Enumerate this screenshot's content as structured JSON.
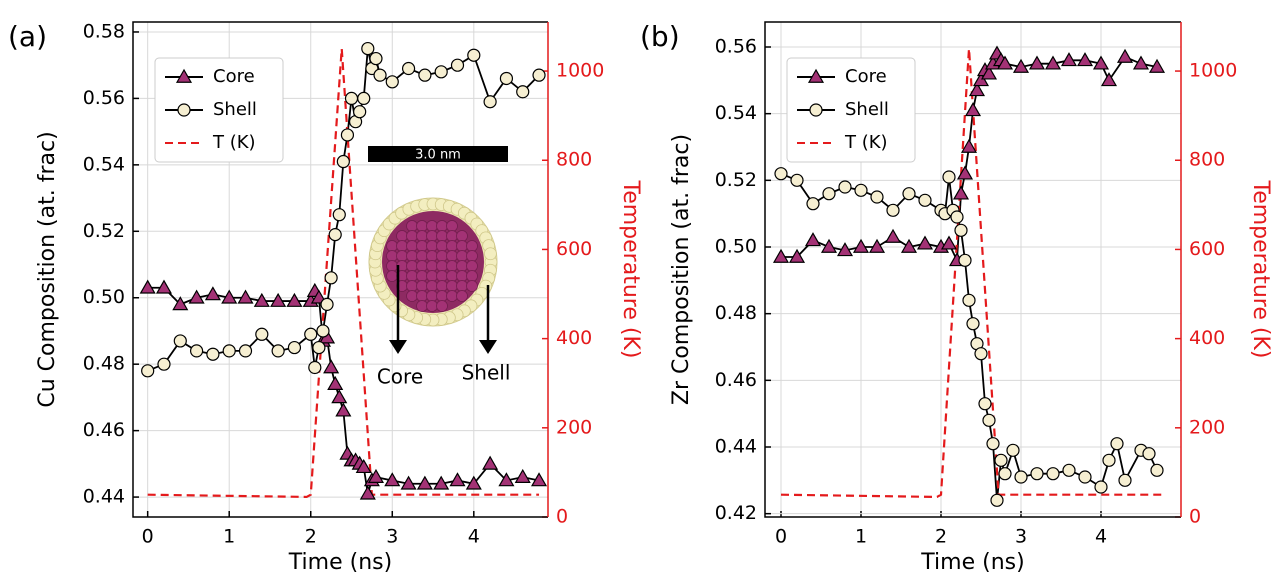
{
  "chart_data": [
    {
      "type": "line",
      "panel_label": "(a)",
      "x_label": "Time (ns)",
      "y_label": "Cu Composition (at. frac)",
      "y2_label": "Temperature (K)",
      "xlim": [
        -0.18,
        4.91
      ],
      "xticks": [
        0,
        1,
        2,
        3,
        4
      ],
      "ylim": [
        0.434,
        0.583
      ],
      "yticks": [
        0.44,
        0.46,
        0.48,
        {
          "value": 0.5,
          "label": "0.50"
        },
        0.52,
        0.54,
        0.56,
        0.58
      ],
      "y2lim": [
        0,
        1110
      ],
      "y2ticks": [
        0,
        200,
        400,
        600,
        800,
        1000
      ],
      "grid": true,
      "legend": "upper left",
      "series": [
        {
          "name": "Core",
          "color": "#000000",
          "marker": "triangle",
          "marker_color": "#a33275",
          "x": [
            0,
            0.2,
            0.4,
            0.6,
            0.8,
            1.0,
            1.2,
            1.4,
            1.6,
            1.8,
            2.0,
            2.05,
            2.1,
            2.15,
            2.2,
            2.25,
            2.3,
            2.35,
            2.4,
            2.45,
            2.5,
            2.55,
            2.6,
            2.65,
            2.7,
            2.75,
            2.8,
            3.0,
            3.2,
            3.4,
            3.6,
            3.8,
            4.0,
            4.2,
            4.4,
            4.6,
            4.8
          ],
          "values": [
            0.503,
            0.503,
            0.498,
            0.5,
            0.501,
            0.5,
            0.5,
            0.499,
            0.499,
            0.499,
            0.499,
            0.502,
            0.5,
            0.487,
            0.488,
            0.479,
            0.474,
            0.47,
            0.466,
            0.453,
            0.451,
            0.451,
            0.45,
            0.449,
            0.441,
            0.445,
            0.446,
            0.445,
            0.444,
            0.444,
            0.444,
            0.445,
            0.444,
            0.45,
            0.445,
            0.446,
            0.445
          ]
        },
        {
          "name": "Shell",
          "color": "#000000",
          "marker": "circle",
          "marker_color": "#f6efd2",
          "x": [
            0,
            0.2,
            0.4,
            0.6,
            0.8,
            1.0,
            1.2,
            1.4,
            1.6,
            1.8,
            2.0,
            2.05,
            2.1,
            2.15,
            2.2,
            2.25,
            2.3,
            2.35,
            2.4,
            2.45,
            2.5,
            2.55,
            2.6,
            2.65,
            2.7,
            2.75,
            2.8,
            2.85,
            3.0,
            3.2,
            3.4,
            3.6,
            3.8,
            4.0,
            4.2,
            4.4,
            4.6,
            4.8
          ],
          "values": [
            0.478,
            0.48,
            0.487,
            0.484,
            0.483,
            0.484,
            0.484,
            0.489,
            0.484,
            0.485,
            0.489,
            0.479,
            0.485,
            0.49,
            0.498,
            0.506,
            0.519,
            0.525,
            0.541,
            0.549,
            0.56,
            0.553,
            0.556,
            0.56,
            0.575,
            0.569,
            0.572,
            0.567,
            0.565,
            0.569,
            0.567,
            0.568,
            0.57,
            0.573,
            0.559,
            0.566,
            0.562,
            0.567
          ]
        },
        {
          "name": "T (K)",
          "color": "#e41a1c",
          "linestyle": "dashed",
          "axis": "y2",
          "x": [
            0,
            1.95,
            2.0,
            2.38,
            2.75,
            4.8
          ],
          "values": [
            50,
            45,
            50,
            1050,
            50,
            50
          ]
        }
      ],
      "inset": {
        "scale_bar": "3.0 nm",
        "labels": [
          "Core",
          "Shell"
        ]
      }
    },
    {
      "type": "line",
      "panel_label": "(b)",
      "x_label": "Time (ns)",
      "y_label": "Zr Composition (at. frac)",
      "y2_label": "Temperature (K)",
      "xlim": [
        -0.2,
        5.0
      ],
      "xticks": [
        0,
        1,
        2,
        3,
        4
      ],
      "ylim": [
        0.419,
        0.5675
      ],
      "yticks": [
        0.42,
        0.44,
        0.46,
        0.48,
        {
          "value": 0.5,
          "label": "0.50"
        },
        0.52,
        0.54,
        0.56
      ],
      "y2lim": [
        0,
        1110
      ],
      "y2ticks": [
        0,
        200,
        400,
        600,
        800,
        1000
      ],
      "grid": true,
      "legend": "upper left",
      "series": [
        {
          "name": "Core",
          "color": "#000000",
          "marker": "triangle",
          "marker_color": "#a33275",
          "x": [
            0,
            0.2,
            0.4,
            0.6,
            0.8,
            1.0,
            1.2,
            1.4,
            1.6,
            1.8,
            2.0,
            2.1,
            2.2,
            2.25,
            2.3,
            2.35,
            2.4,
            2.45,
            2.5,
            2.55,
            2.6,
            2.65,
            2.7,
            2.75,
            2.8,
            3.0,
            3.2,
            3.4,
            3.6,
            3.8,
            4.0,
            4.1,
            4.3,
            4.5,
            4.7
          ],
          "values": [
            0.497,
            0.497,
            0.502,
            0.5,
            0.499,
            0.5,
            0.5,
            0.503,
            0.5,
            0.501,
            0.5,
            0.501,
            0.496,
            0.516,
            0.522,
            0.53,
            0.541,
            0.547,
            0.55,
            0.553,
            0.552,
            0.555,
            0.558,
            0.556,
            0.555,
            0.554,
            0.555,
            0.555,
            0.556,
            0.556,
            0.555,
            0.55,
            0.557,
            0.555,
            0.554
          ]
        },
        {
          "name": "Shell",
          "color": "#000000",
          "marker": "circle",
          "marker_color": "#f6efd2",
          "x": [
            0,
            0.2,
            0.4,
            0.6,
            0.8,
            1.0,
            1.2,
            1.4,
            1.6,
            1.8,
            2.0,
            2.05,
            2.1,
            2.15,
            2.2,
            2.25,
            2.3,
            2.35,
            2.4,
            2.45,
            2.5,
            2.55,
            2.6,
            2.65,
            2.7,
            2.75,
            2.8,
            2.9,
            3.0,
            3.2,
            3.4,
            3.6,
            3.8,
            4.0,
            4.1,
            4.2,
            4.3,
            4.5,
            4.6,
            4.7
          ],
          "values": [
            0.522,
            0.52,
            0.513,
            0.516,
            0.518,
            0.517,
            0.515,
            0.511,
            0.516,
            0.514,
            0.511,
            0.51,
            0.521,
            0.511,
            0.509,
            0.505,
            0.496,
            0.484,
            0.477,
            0.471,
            0.468,
            0.453,
            0.448,
            0.441,
            0.424,
            0.436,
            0.432,
            0.439,
            0.431,
            0.432,
            0.432,
            0.433,
            0.431,
            0.428,
            0.436,
            0.441,
            0.43,
            0.439,
            0.438,
            0.433
          ]
        },
        {
          "name": "T (K)",
          "color": "#e41a1c",
          "linestyle": "dashed",
          "axis": "y2",
          "x": [
            0,
            1.95,
            2.0,
            2.35,
            2.72,
            4.8
          ],
          "values": [
            50,
            45,
            50,
            1050,
            50,
            50
          ]
        }
      ]
    }
  ]
}
